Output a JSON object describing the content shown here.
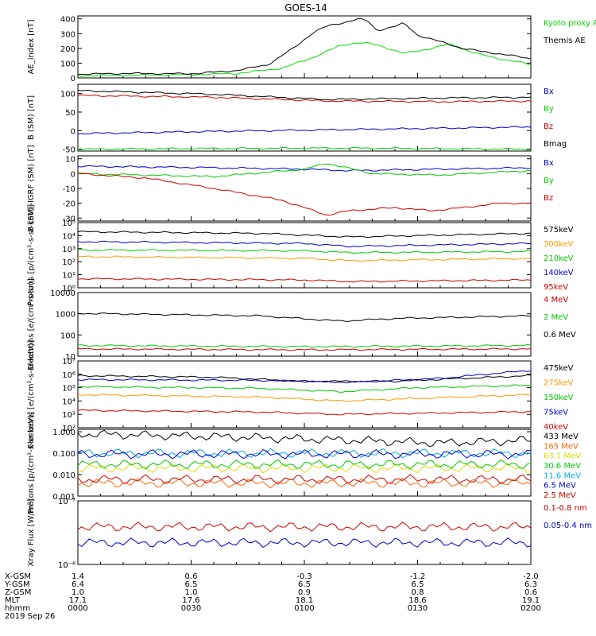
{
  "title": "GOES-14",
  "chart_data": [
    {
      "type": "line",
      "ylabel": "AE_index [nT]",
      "scale": "linear",
      "ylim": [
        0,
        420
      ],
      "yticks": [
        "0",
        "100",
        "200",
        "300",
        "400"
      ],
      "yticks_v": [
        0,
        100,
        200,
        300,
        400
      ],
      "series": [
        {
          "name": "Kyoto proxy AE",
          "color": "#00dd00",
          "values": [
            [
              0,
              15
            ],
            [
              0.1,
              18
            ],
            [
              0.25,
              22
            ],
            [
              0.35,
              30
            ],
            [
              0.45,
              65
            ],
            [
              0.52,
              140
            ],
            [
              0.58,
              220
            ],
            [
              0.62,
              240
            ],
            [
              0.66,
              225
            ],
            [
              0.72,
              165
            ],
            [
              0.78,
              200
            ],
            [
              0.82,
              230
            ],
            [
              0.88,
              165
            ],
            [
              0.93,
              130
            ],
            [
              0.97,
              110
            ],
            [
              1,
              90
            ]
          ]
        },
        {
          "name": "Themis AE",
          "color": "#000000",
          "values": [
            [
              0,
              25
            ],
            [
              0.1,
              30
            ],
            [
              0.25,
              28
            ],
            [
              0.35,
              50
            ],
            [
              0.42,
              90
            ],
            [
              0.48,
              210
            ],
            [
              0.52,
              310
            ],
            [
              0.55,
              350
            ],
            [
              0.58,
              370
            ],
            [
              0.62,
              400
            ],
            [
              0.64,
              385
            ],
            [
              0.66,
              320
            ],
            [
              0.7,
              350
            ],
            [
              0.72,
              370
            ],
            [
              0.75,
              290
            ],
            [
              0.8,
              245
            ],
            [
              0.85,
              200
            ],
            [
              0.9,
              175
            ],
            [
              0.95,
              155
            ],
            [
              1,
              130
            ]
          ]
        }
      ]
    },
    {
      "type": "line",
      "ylabel": "B (SM) [nT]",
      "scale": "linear",
      "ylim": [
        -55,
        125
      ],
      "yticks": [
        "-50",
        "0",
        "50",
        "100"
      ],
      "yticks_v": [
        -50,
        0,
        50,
        100
      ],
      "series": [
        {
          "name": "Bx",
          "color": "#0000cc",
          "values": [
            [
              0,
              -8
            ],
            [
              0.3,
              -2
            ],
            [
              0.6,
              3
            ],
            [
              1,
              10
            ]
          ]
        },
        {
          "name": "By",
          "color": "#00cc00",
          "values": [
            [
              0,
              -50
            ],
            [
              0.3,
              -48
            ],
            [
              0.6,
              -47
            ],
            [
              1,
              -50
            ]
          ]
        },
        {
          "name": "Bz",
          "color": "#cc0000",
          "values": [
            [
              0,
              95
            ],
            [
              0.3,
              90
            ],
            [
              0.55,
              80
            ],
            [
              0.8,
              78
            ],
            [
              1,
              80
            ]
          ]
        },
        {
          "name": "Bmag",
          "color": "#000000",
          "values": [
            [
              0,
              108
            ],
            [
              0.3,
              98
            ],
            [
              0.55,
              84
            ],
            [
              0.8,
              88
            ],
            [
              1,
              90
            ]
          ]
        }
      ]
    },
    {
      "type": "line",
      "ylabel": "B (SM)-IGRF (SM) [nT]",
      "scale": "linear",
      "ylim": [
        -32,
        12
      ],
      "yticks": [
        "-30",
        "-20",
        "-10",
        "0",
        "10"
      ],
      "yticks_v": [
        -30,
        -20,
        -10,
        0,
        10
      ],
      "series": [
        {
          "name": "Bx",
          "color": "#0000cc",
          "values": [
            [
              0,
              5
            ],
            [
              0.3,
              4
            ],
            [
              0.5,
              3
            ],
            [
              0.6,
              2
            ],
            [
              0.8,
              3
            ],
            [
              1,
              4
            ]
          ]
        },
        {
          "name": "By",
          "color": "#00cc00",
          "values": [
            [
              0,
              0
            ],
            [
              0.3,
              -2
            ],
            [
              0.5,
              3
            ],
            [
              0.55,
              7
            ],
            [
              0.65,
              0
            ],
            [
              0.8,
              -1
            ],
            [
              1,
              2
            ]
          ]
        },
        {
          "name": "Bz",
          "color": "#cc0000",
          "values": [
            [
              0,
              0
            ],
            [
              0.15,
              -3
            ],
            [
              0.3,
              -10
            ],
            [
              0.45,
              -18
            ],
            [
              0.55,
              -28
            ],
            [
              0.6,
              -25
            ],
            [
              0.7,
              -23
            ],
            [
              0.78,
              -25
            ],
            [
              0.85,
              -23
            ],
            [
              0.93,
              -20
            ],
            [
              1,
              -20
            ]
          ]
        }
      ]
    },
    {
      "type": "line",
      "ylabel": "Protons [p/(cm²-s-sr-keV)]",
      "scale": "log",
      "ylim": [
        1,
        100000
      ],
      "yticks": [
        "10⁰",
        "10¹",
        "10²",
        "10³",
        "10⁴",
        "10⁵"
      ],
      "yticks_v": [
        1,
        10,
        100,
        1000,
        10000,
        100000
      ],
      "series": [
        {
          "name": "575keV",
          "color": "#000000",
          "values": [
            [
              0,
              20000
            ],
            [
              0.4,
              15000
            ],
            [
              0.6,
              8000
            ],
            [
              1,
              15000
            ]
          ]
        },
        {
          "name": "300keV",
          "color": "#ff9900",
          "values": [
            [
              0,
              250
            ],
            [
              0.5,
              180
            ],
            [
              0.6,
              120
            ],
            [
              1,
              180
            ]
          ]
        },
        {
          "name": "210keV",
          "color": "#00cc00",
          "values": [
            [
              0,
              800
            ],
            [
              0.5,
              700
            ],
            [
              0.6,
              500
            ],
            [
              1,
              600
            ]
          ]
        },
        {
          "name": "140keV",
          "color": "#0000cc",
          "values": [
            [
              0,
              3500
            ],
            [
              0.5,
              2500
            ],
            [
              0.6,
              1500
            ],
            [
              1,
              2500
            ]
          ]
        },
        {
          "name": "95keV",
          "color": "#cc0000",
          "values": [
            [
              0,
              5
            ],
            [
              0.5,
              4
            ],
            [
              0.6,
              3
            ],
            [
              1,
              4
            ]
          ]
        }
      ]
    },
    {
      "type": "line",
      "ylabel": "Electrons [e/(cm²-s-sr)]",
      "scale": "log",
      "ylim": [
        10,
        10000
      ],
      "yticks": [
        "10",
        "100",
        "1000",
        "10000"
      ],
      "yticks_v": [
        10,
        100,
        1000,
        10000
      ],
      "series": [
        {
          "name": "4 MeV",
          "color": "#cc0000",
          "values": [
            [
              0,
              22
            ],
            [
              0.5,
              20
            ],
            [
              1,
              22
            ]
          ]
        },
        {
          "name": "2 MeV",
          "color": "#00cc00",
          "values": [
            [
              0,
              32
            ],
            [
              0.5,
              28
            ],
            [
              1,
              32
            ]
          ]
        },
        {
          "name": "0.6 MeV",
          "color": "#000000",
          "values": [
            [
              0,
              1050
            ],
            [
              0.4,
              800
            ],
            [
              0.58,
              450
            ],
            [
              0.7,
              600
            ],
            [
              1,
              800
            ]
          ]
        }
      ]
    },
    {
      "type": "line",
      "ylabel": "Electrons [e/(cm²-s-sr-keV)]",
      "scale": "log",
      "ylim": [
        100,
        10000000
      ],
      "yticks": [
        "10²",
        "10³",
        "10⁴",
        "10⁵",
        "10⁶",
        "10⁷"
      ],
      "yticks_v": [
        100,
        1000,
        10000,
        100000,
        1000000,
        10000000
      ],
      "series": [
        {
          "name": "475keV",
          "color": "#000000",
          "values": [
            [
              0,
              800000
            ],
            [
              0.3,
              600000
            ],
            [
              0.5,
              300000
            ],
            [
              0.7,
              300000
            ],
            [
              1,
              800000
            ]
          ]
        },
        {
          "name": "275keV",
          "color": "#ff9900",
          "values": [
            [
              0,
              30000
            ],
            [
              0.4,
              20000
            ],
            [
              0.58,
              10000
            ],
            [
              1,
              30000
            ]
          ]
        },
        {
          "name": "150keV",
          "color": "#00cc00",
          "values": [
            [
              0,
              120000
            ],
            [
              0.4,
              90000
            ],
            [
              0.58,
              50000
            ],
            [
              0.75,
              100000
            ],
            [
              1,
              150000
            ]
          ]
        },
        {
          "name": "75keV",
          "color": "#0000cc",
          "values": [
            [
              0,
              400000
            ],
            [
              0.4,
              350000
            ],
            [
              0.6,
              250000
            ],
            [
              0.8,
              500000
            ],
            [
              1,
              2000000
            ]
          ]
        },
        {
          "name": "40keV",
          "color": "#cc0000",
          "values": [
            [
              0,
              2000
            ],
            [
              0.4,
              1500
            ],
            [
              0.58,
              1000
            ],
            [
              1,
              1600
            ]
          ]
        }
      ]
    },
    {
      "type": "line",
      "ylabel": "Protons [p/(cm²-s-sr-keV)]",
      "scale": "log",
      "ylim": [
        0.001,
        1.3
      ],
      "yticks": [
        "0.001",
        "0.010",
        "0.100",
        "1.000"
      ],
      "yticks_v": [
        0.001,
        0.01,
        0.1,
        1
      ],
      "series": [
        {
          "name": "433 MeV",
          "color": "#000000",
          "values": [
            [
              0,
              0.8
            ],
            [
              0.3,
              0.6
            ],
            [
              0.6,
              0.4
            ],
            [
              0.8,
              0.3
            ],
            [
              1,
              0.4
            ]
          ]
        },
        {
          "name": "165 MeV",
          "color": "#ff6600",
          "values": [
            [
              0,
              0.004
            ],
            [
              1,
              0.004
            ]
          ]
        },
        {
          "name": "63.1 MeV",
          "color": "#dddd00",
          "values": [
            [
              0,
              0.02
            ],
            [
              1,
              0.02
            ]
          ]
        },
        {
          "name": "30.6 MeV",
          "color": "#00cc00",
          "values": [
            [
              0,
              0.03
            ],
            [
              1,
              0.03
            ]
          ]
        },
        {
          "name": "11.6 MeV",
          "color": "#00aaee",
          "values": [
            [
              0,
              0.1
            ],
            [
              1,
              0.1
            ]
          ]
        },
        {
          "name": "6.5 MeV",
          "color": "#0000cc",
          "values": [
            [
              0,
              0.09
            ],
            [
              1,
              0.09
            ]
          ]
        },
        {
          "name": "2.5 MeV",
          "color": "#cc0000",
          "values": [
            [
              0,
              0.006
            ],
            [
              1,
              0.006
            ]
          ]
        }
      ]
    },
    {
      "type": "line",
      "ylabel": "Xray Flux [W/m²]",
      "scale": "log",
      "ylim": [
        1e-08,
        1e-07
      ],
      "yticks": [
        "10⁻⁷",
        "10⁻⁸"
      ],
      "yticks_v": [
        1e-07,
        1e-08
      ],
      "series": [
        {
          "name": "0.1-0.8 nm",
          "color": "#cc0000",
          "values": [
            [
              0,
              3.9e-08
            ],
            [
              1,
              3.9e-08
            ]
          ]
        },
        {
          "name": "0.05-0.4 nm",
          "color": "#0000cc",
          "values": [
            [
              0,
              2.2e-08
            ],
            [
              1,
              2.2e-08
            ]
          ]
        }
      ]
    }
  ],
  "xaxis": {
    "rows": [
      {
        "label": "X-GSM",
        "values": [
          "1.4",
          "0.6",
          "-0.3",
          "-1.2",
          "-2.0"
        ]
      },
      {
        "label": "Y-GSM",
        "values": [
          "6.4",
          "6.5",
          "6.5",
          "6.5",
          "6.3"
        ]
      },
      {
        "label": "Z-GSM",
        "values": [
          "1.0",
          "1.0",
          "0.9",
          "0.8",
          "0.6"
        ]
      },
      {
        "label": "MLT",
        "values": [
          "17.1",
          "17.6",
          "18.1",
          "18.6",
          "19.1"
        ]
      },
      {
        "label": "hhmm",
        "values": [
          "0000",
          "0030",
          "0100",
          "0130",
          "0200"
        ]
      }
    ],
    "date": "2019 Sep 26"
  }
}
